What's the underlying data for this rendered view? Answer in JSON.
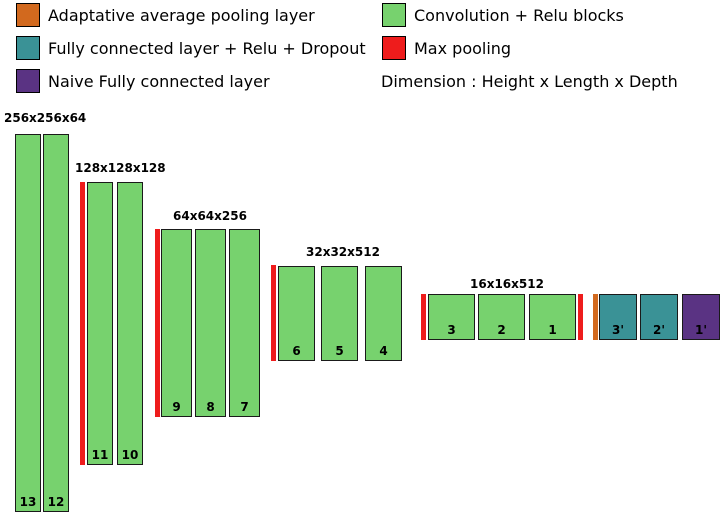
{
  "colors": {
    "adaptive_pool": "#d2691e",
    "conv": "#77d26e",
    "fc": "#3a9296",
    "max_pool": "#ee1c1c",
    "naive_fc": "#5a3383"
  },
  "legend": {
    "adaptive_pool": "Adaptative average pooling layer",
    "conv": "Convolution + Relu blocks",
    "fc": "Fully connected layer + Relu + Dropout",
    "max_pool": "Max pooling",
    "naive_fc": "Naive Fully connected layer",
    "dimension_note": "Dimension : Height x Length x Depth"
  },
  "stages": [
    {
      "dim": "256x256x64"
    },
    {
      "dim": "128x128x128"
    },
    {
      "dim": "64x64x256"
    },
    {
      "dim": "32x32x512"
    },
    {
      "dim": "16x16x512"
    }
  ],
  "blocks": [
    {
      "label": "13",
      "type": "conv"
    },
    {
      "label": "12",
      "type": "conv"
    },
    {
      "label": "11",
      "type": "conv"
    },
    {
      "label": "10",
      "type": "conv"
    },
    {
      "label": "9",
      "type": "conv"
    },
    {
      "label": "8",
      "type": "conv"
    },
    {
      "label": "7",
      "type": "conv"
    },
    {
      "label": "6",
      "type": "conv"
    },
    {
      "label": "5",
      "type": "conv"
    },
    {
      "label": "4",
      "type": "conv"
    },
    {
      "label": "3",
      "type": "conv"
    },
    {
      "label": "2",
      "type": "conv"
    },
    {
      "label": "1",
      "type": "conv"
    },
    {
      "label": "3'",
      "type": "fc"
    },
    {
      "label": "2'",
      "type": "fc"
    },
    {
      "label": "1'",
      "type": "naive_fc"
    }
  ]
}
